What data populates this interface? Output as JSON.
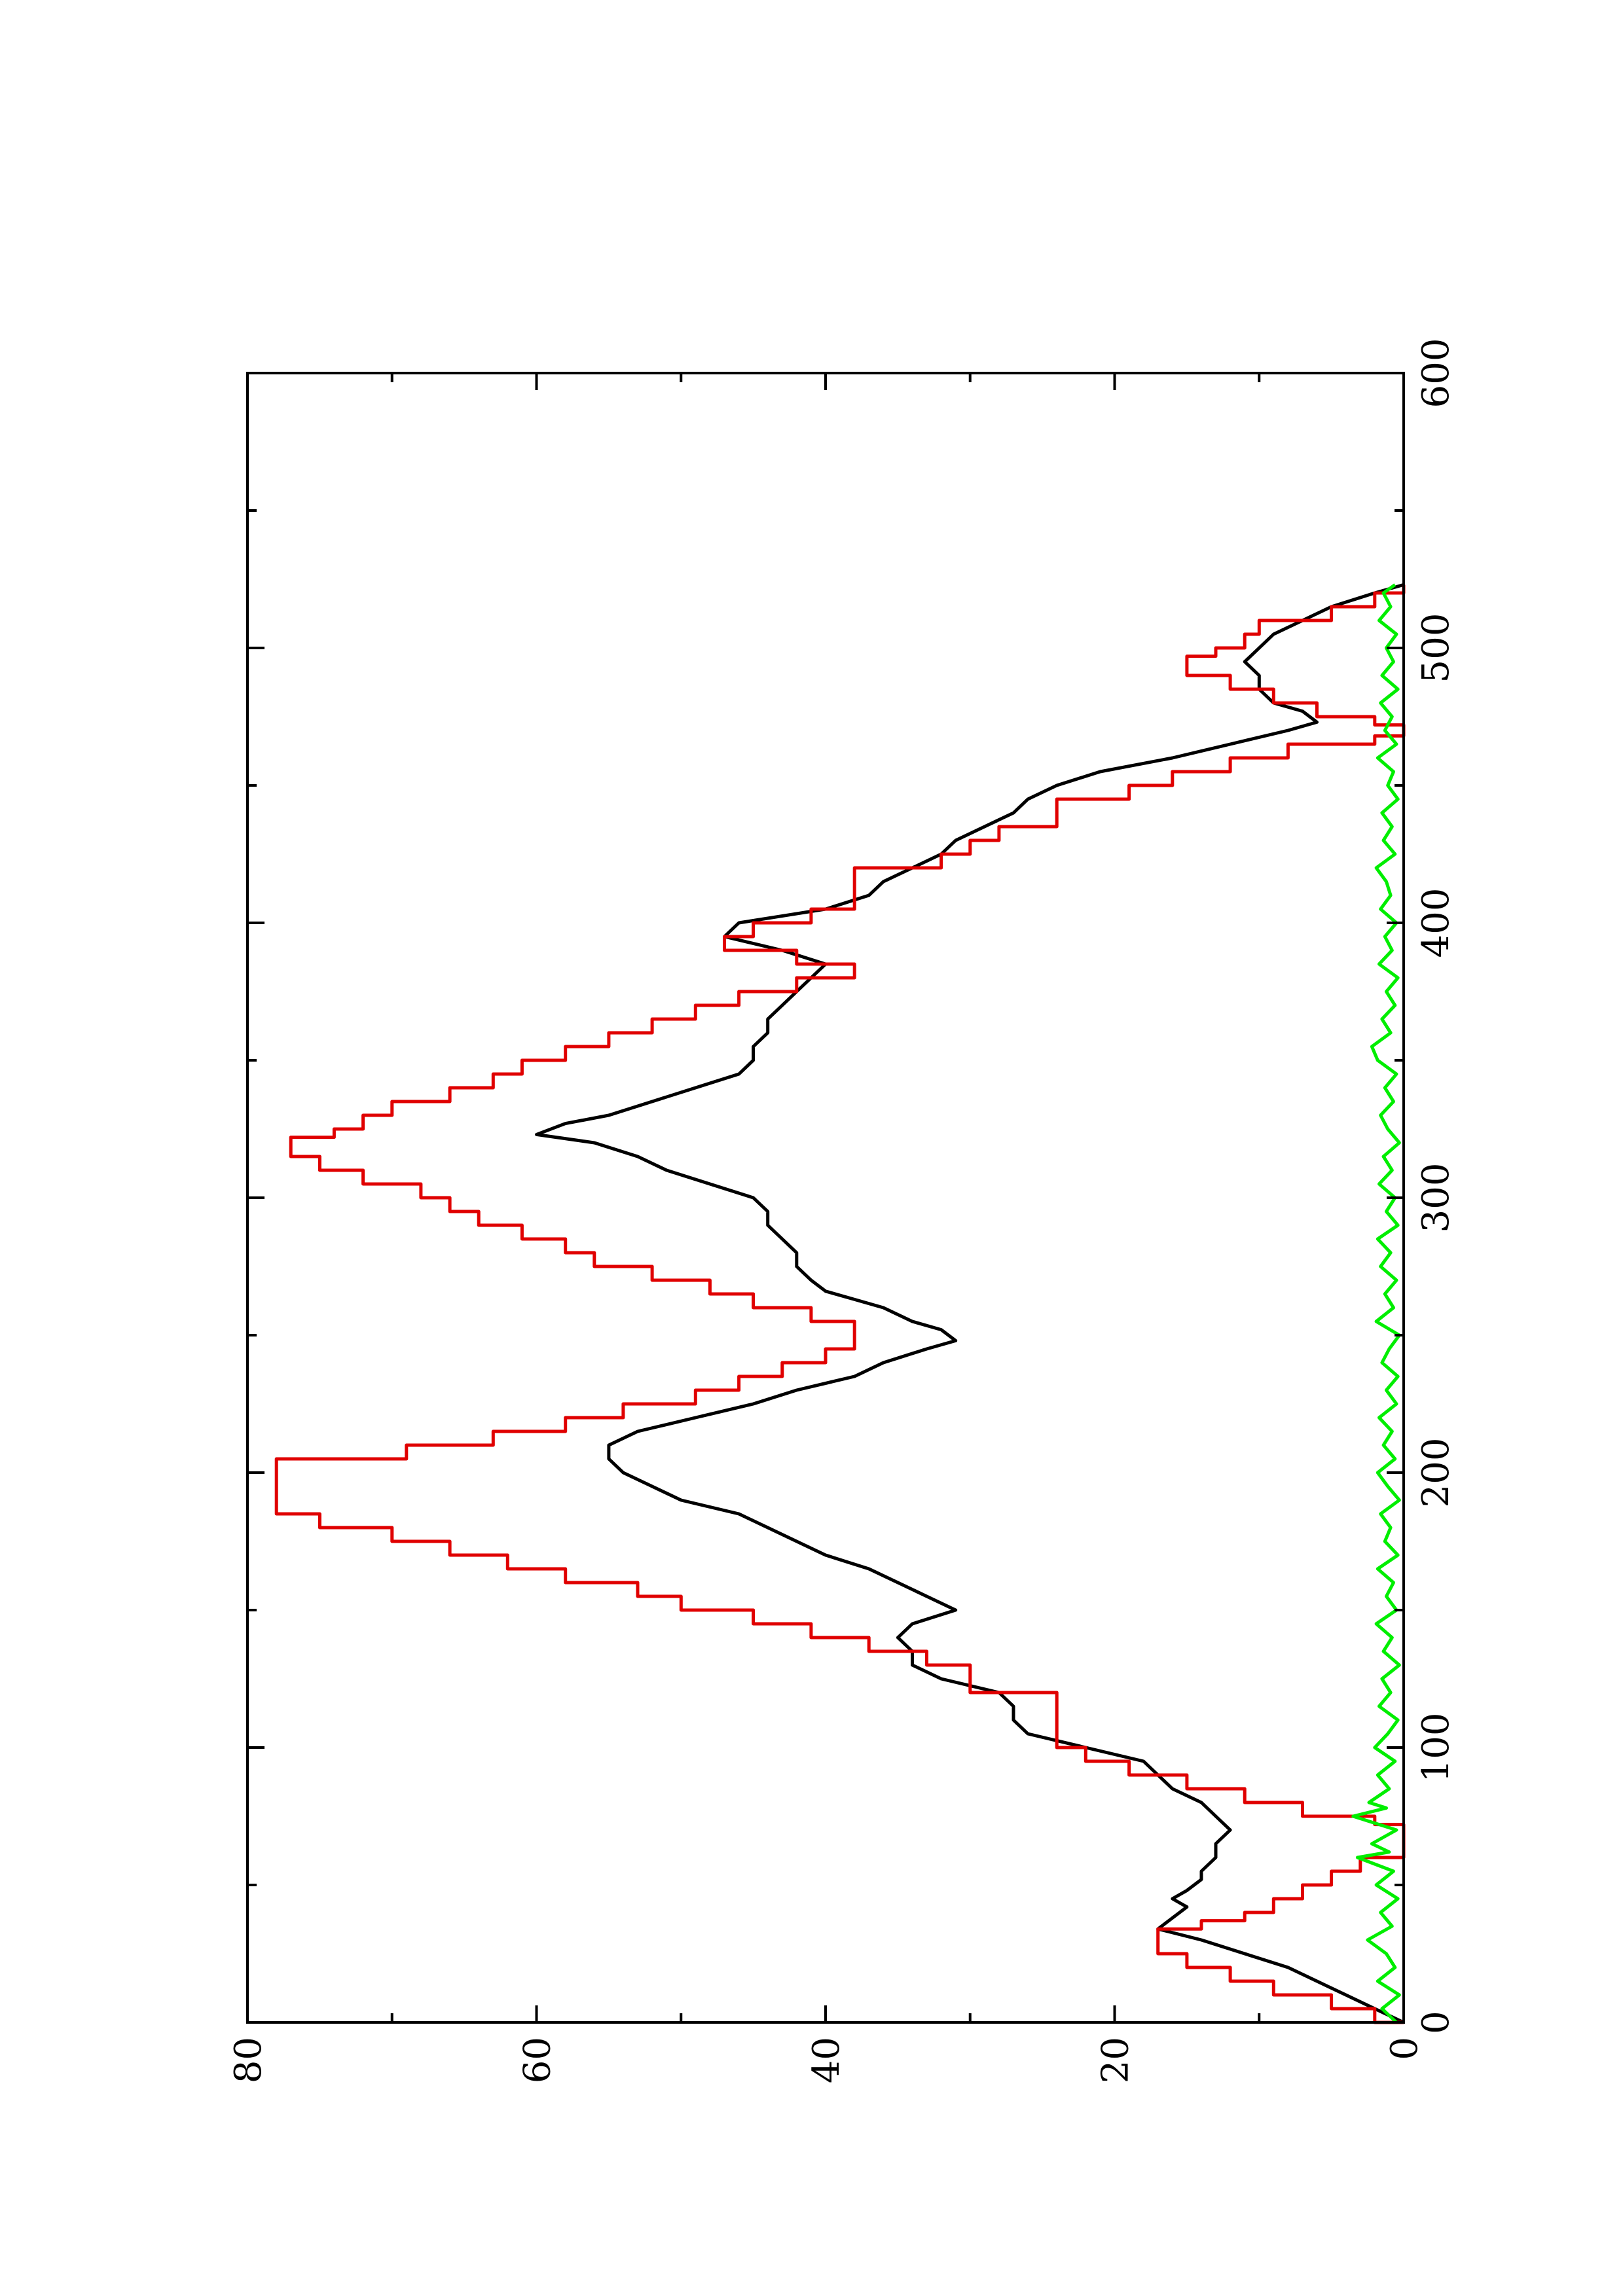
{
  "chart_data": {
    "type": "line",
    "orientation": "rotated 90 degrees counter-clockwise (x axis runs bottom-to-top along the right edge)",
    "title": "",
    "xlabel": "",
    "ylabel": "",
    "xlim": [
      0,
      600
    ],
    "ylim": [
      0,
      80
    ],
    "x_ticks": [
      "0",
      "100",
      "200",
      "300",
      "400",
      "500",
      "600"
    ],
    "y_ticks": [
      "0",
      "20",
      "40",
      "60",
      "80"
    ],
    "grid": false,
    "legend": "none",
    "series": [
      {
        "color": "#000000",
        "style": "line",
        "points": [
          [
            0,
            0
          ],
          [
            5,
            2
          ],
          [
            10,
            4
          ],
          [
            15,
            6
          ],
          [
            20,
            8
          ],
          [
            25,
            11
          ],
          [
            30,
            14
          ],
          [
            34,
            17
          ],
          [
            38,
            16
          ],
          [
            42,
            15
          ],
          [
            45,
            16
          ],
          [
            48,
            15
          ],
          [
            52,
            14
          ],
          [
            55,
            14
          ],
          [
            60,
            13
          ],
          [
            65,
            13
          ],
          [
            70,
            12
          ],
          [
            75,
            13
          ],
          [
            80,
            14
          ],
          [
            85,
            16
          ],
          [
            90,
            17
          ],
          [
            95,
            18
          ],
          [
            100,
            22
          ],
          [
            105,
            26
          ],
          [
            110,
            27
          ],
          [
            115,
            27
          ],
          [
            120,
            28
          ],
          [
            125,
            32
          ],
          [
            130,
            34
          ],
          [
            135,
            34
          ],
          [
            140,
            35
          ],
          [
            145,
            34
          ],
          [
            150,
            31
          ],
          [
            155,
            33
          ],
          [
            160,
            35
          ],
          [
            165,
            37
          ],
          [
            170,
            40
          ],
          [
            175,
            42
          ],
          [
            180,
            44
          ],
          [
            185,
            46
          ],
          [
            190,
            50
          ],
          [
            195,
            52
          ],
          [
            200,
            54
          ],
          [
            205,
            55
          ],
          [
            210,
            55
          ],
          [
            215,
            53
          ],
          [
            220,
            49
          ],
          [
            225,
            45
          ],
          [
            230,
            42
          ],
          [
            235,
            38
          ],
          [
            240,
            36
          ],
          [
            245,
            33
          ],
          [
            248,
            31
          ],
          [
            252,
            32
          ],
          [
            255,
            34
          ],
          [
            260,
            36
          ],
          [
            263,
            38
          ],
          [
            266,
            40
          ],
          [
            270,
            41
          ],
          [
            275,
            42
          ],
          [
            280,
            42
          ],
          [
            285,
            43
          ],
          [
            290,
            44
          ],
          [
            295,
            44
          ],
          [
            300,
            45
          ],
          [
            305,
            48
          ],
          [
            310,
            51
          ],
          [
            315,
            53
          ],
          [
            320,
            56
          ],
          [
            323,
            60
          ],
          [
            327,
            58
          ],
          [
            330,
            55
          ],
          [
            335,
            52
          ],
          [
            340,
            49
          ],
          [
            345,
            46
          ],
          [
            350,
            45
          ],
          [
            355,
            45
          ],
          [
            360,
            44
          ],
          [
            365,
            44
          ],
          [
            370,
            43
          ],
          [
            375,
            42
          ],
          [
            380,
            41
          ],
          [
            385,
            40
          ],
          [
            390,
            43
          ],
          [
            395,
            47
          ],
          [
            400,
            46
          ],
          [
            405,
            40
          ],
          [
            410,
            37
          ],
          [
            415,
            36
          ],
          [
            420,
            34
          ],
          [
            425,
            32
          ],
          [
            430,
            31
          ],
          [
            435,
            29
          ],
          [
            440,
            27
          ],
          [
            445,
            26
          ],
          [
            450,
            24
          ],
          [
            455,
            21
          ],
          [
            460,
            16
          ],
          [
            465,
            12
          ],
          [
            470,
            8
          ],
          [
            473,
            6
          ],
          [
            477,
            7
          ],
          [
            480,
            9
          ],
          [
            485,
            10
          ],
          [
            490,
            10
          ],
          [
            495,
            11
          ],
          [
            500,
            10
          ],
          [
            505,
            9
          ],
          [
            510,
            7
          ],
          [
            515,
            5
          ],
          [
            520,
            2
          ],
          [
            523,
            0
          ]
        ]
      },
      {
        "color": "#e00000",
        "style": "step",
        "points": [
          [
            0,
            0
          ],
          [
            5,
            2
          ],
          [
            10,
            5
          ],
          [
            15,
            9
          ],
          [
            20,
            12
          ],
          [
            25,
            15
          ],
          [
            30,
            17
          ],
          [
            34,
            17
          ],
          [
            37,
            14
          ],
          [
            40,
            11
          ],
          [
            45,
            9
          ],
          [
            50,
            7
          ],
          [
            55,
            5
          ],
          [
            60,
            3
          ],
          [
            64,
            0
          ],
          [
            72,
            0
          ],
          [
            75,
            2
          ],
          [
            80,
            7
          ],
          [
            85,
            11
          ],
          [
            90,
            15
          ],
          [
            95,
            19
          ],
          [
            100,
            22
          ],
          [
            105,
            24
          ],
          [
            110,
            24
          ],
          [
            115,
            24
          ],
          [
            120,
            24
          ],
          [
            125,
            30
          ],
          [
            130,
            30
          ],
          [
            135,
            33
          ],
          [
            140,
            37
          ],
          [
            145,
            41
          ],
          [
            150,
            45
          ],
          [
            155,
            50
          ],
          [
            160,
            53
          ],
          [
            165,
            58
          ],
          [
            170,
            62
          ],
          [
            175,
            66
          ],
          [
            180,
            70
          ],
          [
            185,
            75
          ],
          [
            190,
            78
          ],
          [
            195,
            78
          ],
          [
            200,
            78
          ],
          [
            205,
            78
          ],
          [
            210,
            69
          ],
          [
            215,
            63
          ],
          [
            220,
            58
          ],
          [
            225,
            54
          ],
          [
            230,
            49
          ],
          [
            235,
            46
          ],
          [
            240,
            43
          ],
          [
            245,
            40
          ],
          [
            250,
            38
          ],
          [
            255,
            38
          ],
          [
            260,
            41
          ],
          [
            265,
            45
          ],
          [
            270,
            48
          ],
          [
            275,
            52
          ],
          [
            280,
            56
          ],
          [
            285,
            58
          ],
          [
            290,
            61
          ],
          [
            295,
            64
          ],
          [
            300,
            66
          ],
          [
            305,
            68
          ],
          [
            310,
            72
          ],
          [
            315,
            75
          ],
          [
            320,
            77
          ],
          [
            322,
            77
          ],
          [
            325,
            74
          ],
          [
            330,
            72
          ],
          [
            335,
            70
          ],
          [
            340,
            66
          ],
          [
            345,
            63
          ],
          [
            350,
            61
          ],
          [
            355,
            58
          ],
          [
            360,
            55
          ],
          [
            365,
            52
          ],
          [
            370,
            49
          ],
          [
            375,
            46
          ],
          [
            380,
            42
          ],
          [
            385,
            38
          ],
          [
            390,
            42
          ],
          [
            395,
            47
          ],
          [
            400,
            45
          ],
          [
            405,
            41
          ],
          [
            410,
            38
          ],
          [
            415,
            38
          ],
          [
            420,
            38
          ],
          [
            425,
            32
          ],
          [
            430,
            30
          ],
          [
            435,
            28
          ],
          [
            440,
            24
          ],
          [
            445,
            24
          ],
          [
            450,
            19
          ],
          [
            455,
            16
          ],
          [
            460,
            12
          ],
          [
            465,
            8
          ],
          [
            468,
            2
          ],
          [
            472,
            0
          ],
          [
            475,
            2
          ],
          [
            480,
            6
          ],
          [
            485,
            9
          ],
          [
            490,
            12
          ],
          [
            494,
            15
          ],
          [
            497,
            15
          ],
          [
            500,
            13
          ],
          [
            505,
            11
          ],
          [
            510,
            10
          ],
          [
            515,
            5
          ],
          [
            520,
            2
          ],
          [
            523,
            0
          ]
        ]
      },
      {
        "color": "#00ee00",
        "style": "noise",
        "points": [
          [
            0,
            0.5
          ],
          [
            5,
            1.5
          ],
          [
            10,
            0.3
          ],
          [
            15,
            1.8
          ],
          [
            20,
            0.6
          ],
          [
            25,
            1.2
          ],
          [
            30,
            2.5
          ],
          [
            35,
            0.8
          ],
          [
            40,
            1.6
          ],
          [
            45,
            0.4
          ],
          [
            50,
            1.9
          ],
          [
            55,
            0.7
          ],
          [
            60,
            3.2
          ],
          [
            62,
            1.0
          ],
          [
            65,
            2.2
          ],
          [
            70,
            0.5
          ],
          [
            75,
            3.5
          ],
          [
            78,
            1.2
          ],
          [
            80,
            2.4
          ],
          [
            85,
            1.0
          ],
          [
            90,
            1.8
          ],
          [
            95,
            0.6
          ],
          [
            100,
            2.0
          ],
          [
            105,
            1.1
          ],
          [
            110,
            0.4
          ],
          [
            115,
            1.7
          ],
          [
            120,
            0.9
          ],
          [
            125,
            1.5
          ],
          [
            130,
            0.3
          ],
          [
            135,
            1.4
          ],
          [
            140,
            0.8
          ],
          [
            145,
            1.9
          ],
          [
            150,
            0.5
          ],
          [
            155,
            1.2
          ],
          [
            160,
            0.7
          ],
          [
            165,
            1.8
          ],
          [
            170,
            0.4
          ],
          [
            175,
            1.3
          ],
          [
            180,
            0.9
          ],
          [
            185,
            1.6
          ],
          [
            190,
            0.3
          ],
          [
            195,
            1.1
          ],
          [
            200,
            1.8
          ],
          [
            205,
            0.6
          ],
          [
            210,
            1.4
          ],
          [
            215,
            0.8
          ],
          [
            220,
            1.7
          ],
          [
            225,
            0.5
          ],
          [
            230,
            1.2
          ],
          [
            235,
            0.4
          ],
          [
            240,
            1.5
          ],
          [
            245,
            1.0
          ],
          [
            250,
            0.3
          ],
          [
            255,
            1.9
          ],
          [
            260,
            0.7
          ],
          [
            265,
            1.3
          ],
          [
            270,
            0.5
          ],
          [
            275,
            1.6
          ],
          [
            280,
            0.9
          ],
          [
            285,
            1.8
          ],
          [
            290,
            0.4
          ],
          [
            295,
            1.2
          ],
          [
            300,
            0.6
          ],
          [
            305,
            1.7
          ],
          [
            310,
            0.8
          ],
          [
            315,
            1.4
          ],
          [
            320,
            0.3
          ],
          [
            325,
            1.1
          ],
          [
            330,
            1.6
          ],
          [
            335,
            0.7
          ],
          [
            340,
            1.3
          ],
          [
            345,
            0.5
          ],
          [
            350,
            1.8
          ],
          [
            355,
            2.2
          ],
          [
            360,
            0.9
          ],
          [
            365,
            1.5
          ],
          [
            370,
            0.6
          ],
          [
            375,
            1.2
          ],
          [
            380,
            0.4
          ],
          [
            385,
            1.7
          ],
          [
            390,
            0.8
          ],
          [
            395,
            1.3
          ],
          [
            400,
            0.5
          ],
          [
            405,
            1.6
          ],
          [
            410,
            0.9
          ],
          [
            415,
            1.2
          ],
          [
            420,
            1.9
          ],
          [
            425,
            0.6
          ],
          [
            430,
            1.4
          ],
          [
            435,
            0.8
          ],
          [
            440,
            1.5
          ],
          [
            445,
            0.4
          ],
          [
            450,
            1.1
          ],
          [
            455,
            0.7
          ],
          [
            460,
            1.8
          ],
          [
            465,
            0.5
          ],
          [
            470,
            1.3
          ],
          [
            475,
            0.8
          ],
          [
            480,
            1.6
          ],
          [
            485,
            0.4
          ],
          [
            490,
            1.5
          ],
          [
            495,
            0.7
          ],
          [
            500,
            1.2
          ],
          [
            505,
            0.5
          ],
          [
            510,
            1.7
          ],
          [
            515,
            0.9
          ],
          [
            520,
            1.4
          ],
          [
            523,
            0.6
          ]
        ]
      }
    ]
  }
}
